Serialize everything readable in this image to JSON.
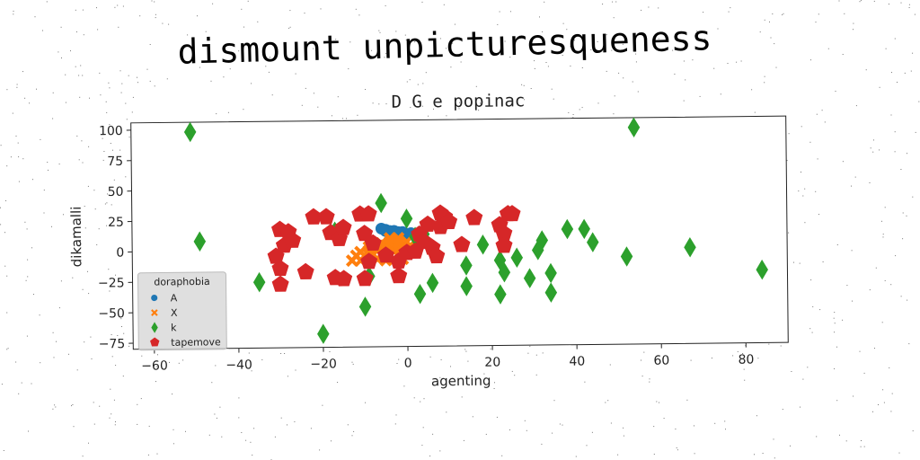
{
  "page": {
    "title": "dismount unpicturesqueness"
  },
  "chart_data": {
    "type": "scatter",
    "title": "D G e popinac",
    "xlabel": "agenting",
    "ylabel": "dikamalli",
    "xlim": [
      -65,
      90
    ],
    "ylim": [
      -80,
      106
    ],
    "x_ticks": [
      -60,
      -40,
      -20,
      0,
      20,
      40,
      60,
      80
    ],
    "y_ticks": [
      -75,
      -50,
      -25,
      0,
      25,
      50,
      75,
      100
    ],
    "x_tick_labels": [
      "−60",
      "−40",
      "−20",
      "0",
      "20",
      "40",
      "60",
      "80"
    ],
    "y_tick_labels": [
      "−75",
      "−50",
      "−25",
      "0",
      "25",
      "50",
      "75",
      "100"
    ],
    "grid": false,
    "legend": {
      "title": "doraphobia",
      "placement": "lower-left"
    },
    "series": [
      {
        "name": "A",
        "marker": "circle",
        "color": "#1f77b4",
        "points": [
          [
            -6,
            17
          ],
          [
            -5,
            16
          ],
          [
            -4,
            15
          ],
          [
            -3,
            14.5
          ],
          [
            -2,
            14
          ],
          [
            -1,
            13
          ],
          [
            0,
            12.5
          ],
          [
            1,
            12
          ],
          [
            2,
            11.5
          ],
          [
            3,
            11
          ],
          [
            3.5,
            10
          ],
          [
            -5,
            15
          ],
          [
            -3,
            15
          ],
          [
            -1,
            14
          ],
          [
            1,
            13
          ]
        ]
      },
      {
        "name": "X",
        "marker": "x",
        "color": "#ff7f0e",
        "points": [
          [
            -13,
            -9
          ],
          [
            -11,
            -9
          ],
          [
            -9,
            -8
          ],
          [
            -7,
            -8
          ],
          [
            -5,
            -9
          ],
          [
            -3,
            -8
          ],
          [
            -1,
            -8
          ],
          [
            -12,
            -5
          ],
          [
            -10,
            -5
          ],
          [
            -8,
            -4
          ],
          [
            -6,
            -4
          ],
          [
            -4,
            -5
          ],
          [
            -2,
            -4
          ],
          [
            0,
            -4
          ],
          [
            -11,
            -2
          ],
          [
            -9,
            -1
          ],
          [
            -7,
            -1
          ],
          [
            -5,
            -1
          ],
          [
            -3,
            -2
          ],
          [
            -1,
            -1
          ],
          [
            1,
            -1
          ],
          [
            -9,
            2
          ],
          [
            -7,
            2
          ],
          [
            -5,
            3
          ],
          [
            -3,
            2
          ],
          [
            -1,
            3
          ],
          [
            1,
            2
          ],
          [
            -6,
            5
          ],
          [
            -4,
            6
          ],
          [
            -2,
            5
          ],
          [
            0,
            6
          ],
          [
            2,
            7
          ],
          [
            -4,
            9
          ],
          [
            -2,
            9
          ]
        ]
      },
      {
        "name": "k",
        "marker": "diamond",
        "color": "#2ca02c",
        "points": [
          [
            -51,
            98
          ],
          [
            54,
            98
          ],
          [
            -49,
            8
          ],
          [
            -35,
            -26
          ],
          [
            -20,
            -69
          ],
          [
            -10,
            -47
          ],
          [
            -17,
            15
          ],
          [
            -6,
            38
          ],
          [
            0,
            25
          ],
          [
            2,
            10
          ],
          [
            4,
            12
          ],
          [
            -9,
            -22
          ],
          [
            3,
            -37
          ],
          [
            6,
            -28
          ],
          [
            14,
            -14
          ],
          [
            14,
            -31
          ],
          [
            18,
            3
          ],
          [
            22,
            -10
          ],
          [
            23,
            -20
          ],
          [
            22,
            -38
          ],
          [
            26,
            -8
          ],
          [
            29,
            -25
          ],
          [
            31,
            -2
          ],
          [
            32,
            6
          ],
          [
            34,
            -21
          ],
          [
            34,
            -37
          ],
          [
            38,
            15
          ],
          [
            42,
            15
          ],
          [
            44,
            4
          ],
          [
            52,
            -8
          ],
          [
            67,
            -1
          ],
          [
            84,
            -20
          ]
        ]
      },
      {
        "name": "tapemove",
        "marker": "pentagon",
        "color": "#d62728",
        "points": [
          [
            -30,
            17
          ],
          [
            -28,
            15
          ],
          [
            -29,
            4
          ],
          [
            -31,
            -5
          ],
          [
            -30,
            -15
          ],
          [
            -30,
            -28
          ],
          [
            -27,
            8
          ],
          [
            -24,
            -18
          ],
          [
            -22,
            27
          ],
          [
            -19,
            27
          ],
          [
            -18,
            14
          ],
          [
            -16,
            9
          ],
          [
            -15,
            18
          ],
          [
            -17,
            -23
          ],
          [
            -15,
            -24
          ],
          [
            -11,
            29
          ],
          [
            -9,
            29
          ],
          [
            -10,
            13
          ],
          [
            -9,
            -10
          ],
          [
            -10,
            -24
          ],
          [
            -8,
            5
          ],
          [
            -5,
            -5
          ],
          [
            -2,
            -10
          ],
          [
            -2,
            -22
          ],
          [
            0,
            -3
          ],
          [
            2,
            -2
          ],
          [
            3,
            12
          ],
          [
            4,
            6
          ],
          [
            5,
            20
          ],
          [
            6,
            1
          ],
          [
            7,
            -6
          ],
          [
            8,
            18
          ],
          [
            8,
            29
          ],
          [
            9,
            26
          ],
          [
            10,
            22
          ],
          [
            13,
            3
          ],
          [
            16,
            25
          ],
          [
            22,
            19
          ],
          [
            23,
            12
          ],
          [
            23,
            2
          ],
          [
            24,
            28
          ],
          [
            25,
            28
          ]
        ]
      }
    ]
  }
}
